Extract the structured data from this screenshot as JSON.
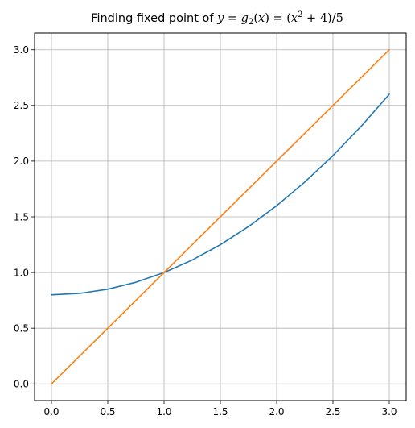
{
  "chart_data": {
    "type": "line",
    "title": {
      "prefix": "Finding fixed point of ",
      "parts": [
        {
          "t": "y",
          "s": "it"
        },
        {
          "t": " = ",
          "s": "rm"
        },
        {
          "t": "g",
          "s": "it"
        },
        {
          "t": "2",
          "s": "sub"
        },
        {
          "t": "(",
          "s": "rm"
        },
        {
          "t": "x",
          "s": "it"
        },
        {
          "t": ") = (",
          "s": "rm"
        },
        {
          "t": "x",
          "s": "it"
        },
        {
          "t": "2",
          "s": "sup"
        },
        {
          "t": " + 4)/5",
          "s": "rm"
        }
      ]
    },
    "xlabel": "",
    "ylabel": "",
    "xlim": [
      -0.15,
      3.15
    ],
    "ylim": [
      -0.15,
      3.15
    ],
    "xticks": [
      0.0,
      0.5,
      1.0,
      1.5,
      2.0,
      2.5,
      3.0
    ],
    "yticks": [
      0.0,
      0.5,
      1.0,
      1.5,
      2.0,
      2.5,
      3.0
    ],
    "xtick_labels": [
      "0.0",
      "0.5",
      "1.0",
      "1.5",
      "2.0",
      "2.5",
      "3.0"
    ],
    "ytick_labels": [
      "0.0",
      "0.5",
      "1.0",
      "1.5",
      "2.0",
      "2.5",
      "3.0"
    ],
    "grid": true,
    "series": [
      {
        "color": "#1f77b4",
        "x": [
          0.0,
          0.25,
          0.5,
          0.75,
          1.0,
          1.25,
          1.5,
          1.75,
          2.0,
          2.25,
          2.5,
          2.75,
          3.0
        ],
        "y": [
          0.8,
          0.8125,
          0.85,
          0.9125,
          1.0,
          1.1125,
          1.25,
          1.4125,
          1.6,
          1.8125,
          2.05,
          2.3125,
          2.6
        ]
      },
      {
        "color": "#ff7f0e",
        "x": [
          0.0,
          3.0
        ],
        "y": [
          0.0,
          3.0
        ]
      }
    ]
  }
}
